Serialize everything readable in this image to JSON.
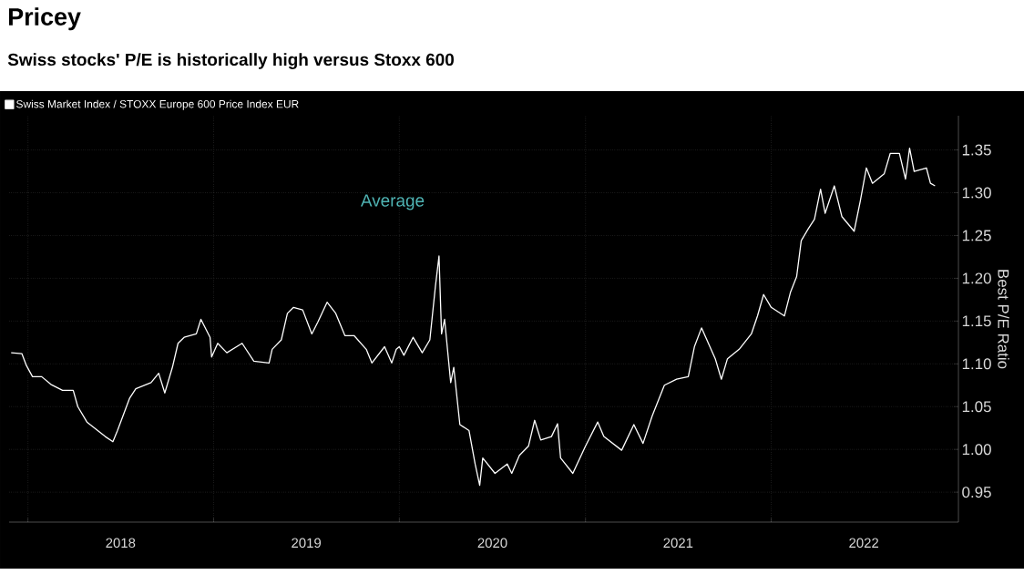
{
  "chart_data": {
    "type": "line",
    "title": "Pricey",
    "subtitle": "Swiss stocks' P/E is historically high versus Stoxx 600",
    "ylabel": "Best P/E Ratio",
    "annotations": [
      "Average"
    ],
    "xlim": [
      "2017-11-25",
      "2023-01-04"
    ],
    "xticks": [
      {
        "value": "2018-01-01",
        "label": null
      },
      {
        "value": "2019-01-01",
        "label": null
      },
      {
        "value": "2020-01-01",
        "label": null
      },
      {
        "value": "2021-01-01",
        "label": null
      },
      {
        "value": "2022-01-01",
        "label": null
      },
      {
        "value": "2018-07-02",
        "label": "2018"
      },
      {
        "value": "2019-07-02",
        "label": "2019"
      },
      {
        "value": "2020-07-02",
        "label": "2020"
      },
      {
        "value": "2021-07-02",
        "label": "2021"
      },
      {
        "value": "2022-07-02",
        "label": "2022"
      }
    ],
    "ylim": [
      0.915,
      1.39
    ],
    "yticks": [
      0.95,
      {
        "value": 1.0,
        "label": "1.00"
      },
      1.05,
      {
        "value": 1.1,
        "label": "1.10"
      },
      1.15,
      {
        "value": 1.2,
        "label": "1.20"
      },
      1.25,
      {
        "value": 1.3,
        "label": "1.30"
      },
      1.35
    ],
    "grid": true,
    "legend": "top left",
    "series": [
      {
        "name": "Swiss Market Index / STOXX Europe 600 Price Index EUR",
        "color": "#ffffff",
        "x": [
          "2017-11-29",
          "2017-12-20",
          "2017-12-29",
          "2018-01-10",
          "2018-01-28",
          "2018-02-15",
          "2018-03-10",
          "2018-03-31",
          "2018-04-09",
          "2018-04-27",
          "2018-06-02",
          "2018-06-17",
          "2018-06-26",
          "2018-07-20",
          "2018-08-01",
          "2018-08-31",
          "2018-09-15",
          "2018-09-27",
          "2018-10-12",
          "2018-10-23",
          "2018-11-04",
          "2018-11-28",
          "2018-12-07",
          "2018-12-25",
          "2018-12-28",
          "2019-01-09",
          "2019-01-27",
          "2019-02-26",
          "2019-03-21",
          "2019-04-20",
          "2019-04-26",
          "2019-05-14",
          "2019-05-26",
          "2019-06-07",
          "2019-06-25",
          "2019-07-13",
          "2019-07-25",
          "2019-08-12",
          "2019-08-29",
          "2019-09-16",
          "2019-10-04",
          "2019-10-28",
          "2019-11-08",
          "2019-12-03",
          "2019-12-17",
          "2019-12-26",
          "2020-01-01",
          "2020-01-10",
          "2020-01-28",
          "2020-02-15",
          "2020-03-01",
          "2020-03-12",
          "2020-03-19",
          "2020-03-24",
          "2020-03-30",
          "2020-04-11",
          "2020-04-17",
          "2020-04-29",
          "2020-05-17",
          "2020-05-29",
          "2020-06-07",
          "2020-06-13",
          "2020-07-07",
          "2020-07-31",
          "2020-08-09",
          "2020-08-24",
          "2020-09-11",
          "2020-09-23",
          "2020-10-05",
          "2020-10-26",
          "2020-11-07",
          "2020-11-13",
          "2020-12-07",
          "2021-01-01",
          "2021-01-25",
          "2021-02-06",
          "2021-03-13",
          "2021-04-06",
          "2021-04-24",
          "2021-05-12",
          "2021-06-05",
          "2021-06-29",
          "2021-07-22",
          "2021-08-03",
          "2021-08-17",
          "2021-09-13",
          "2021-09-25",
          "2021-10-07",
          "2021-10-30",
          "2021-11-23",
          "2021-12-05",
          "2021-12-17",
          "2022-01-01",
          "2022-01-27",
          "2022-02-08",
          "2022-02-20",
          "2022-03-01",
          "2022-03-15",
          "2022-03-27",
          "2022-04-08",
          "2022-04-17",
          "2022-05-05",
          "2022-05-20",
          "2022-06-13",
          "2022-06-25",
          "2022-07-07",
          "2022-07-19",
          "2022-08-11",
          "2022-08-23",
          "2022-09-10",
          "2022-09-22",
          "2022-09-30",
          "2022-10-09",
          "2022-11-02",
          "2022-11-10",
          "2022-11-19"
        ],
        "values": [
          1.113,
          1.112,
          1.098,
          1.085,
          1.085,
          1.076,
          1.069,
          1.069,
          1.05,
          1.032,
          1.015,
          1.009,
          1.022,
          1.06,
          1.071,
          1.078,
          1.089,
          1.066,
          1.096,
          1.124,
          1.131,
          1.135,
          1.152,
          1.131,
          1.108,
          1.124,
          1.113,
          1.124,
          1.103,
          1.101,
          1.117,
          1.128,
          1.159,
          1.166,
          1.163,
          1.135,
          1.149,
          1.172,
          1.159,
          1.133,
          1.133,
          1.117,
          1.101,
          1.12,
          1.101,
          1.117,
          1.12,
          1.11,
          1.131,
          1.113,
          1.128,
          1.191,
          1.226,
          1.135,
          1.152,
          1.078,
          1.096,
          1.029,
          1.022,
          0.983,
          0.958,
          0.99,
          0.972,
          0.983,
          0.972,
          0.993,
          1.004,
          1.034,
          1.011,
          1.015,
          1.03,
          0.99,
          0.972,
          1.004,
          1.032,
          1.015,
          0.999,
          1.029,
          1.007,
          1.039,
          1.075,
          1.082,
          1.085,
          1.12,
          1.142,
          1.106,
          1.082,
          1.106,
          1.117,
          1.135,
          1.156,
          1.181,
          1.166,
          1.156,
          1.184,
          1.202,
          1.244,
          1.258,
          1.269,
          1.304,
          1.276,
          1.308,
          1.272,
          1.255,
          1.29,
          1.329,
          1.311,
          1.322,
          1.346,
          1.346,
          1.316,
          1.352,
          1.325,
          1.329,
          1.311,
          1.308
        ]
      }
    ]
  }
}
